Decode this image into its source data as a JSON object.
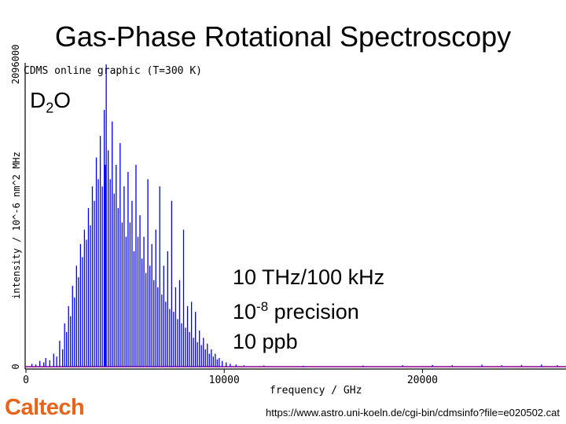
{
  "slide": {
    "title": "Gas-Phase Rotational Spectroscopy",
    "molecule_base": "D",
    "molecule_sub": "2",
    "molecule_tail": "O",
    "note_line1": "10 THz/100 kHz",
    "note_line2_base": "10",
    "note_line2_exp": "-8",
    "note_line2_tail": " precision",
    "note_line3": "10 ppb",
    "logo": "Caltech",
    "source_url": "https://www.astro.uni-koeln.de/cgi-bin/cdmsinfo?file=e020502.cat"
  },
  "chart_data": {
    "type": "bar",
    "title": "CDMS online graphic (T=300 K)",
    "xlabel": "frequency / GHz",
    "ylabel": "intensity / 10^-6 nm^2 MHz",
    "xlim": [
      0,
      27000
    ],
    "ylim": [
      0,
      2096000
    ],
    "xticks": [
      0,
      10000,
      20000
    ],
    "yticks": [
      0,
      2096000
    ],
    "grid": false,
    "colors": {
      "lines": "#0000ee",
      "baseline": "#880088",
      "axis": "#000000"
    },
    "lines": [
      [
        300,
        20000
      ],
      [
        500,
        15000
      ],
      [
        700,
        40000
      ],
      [
        900,
        30000
      ],
      [
        1000,
        60000
      ],
      [
        1200,
        45000
      ],
      [
        1400,
        90000
      ],
      [
        1550,
        70000
      ],
      [
        1700,
        180000
      ],
      [
        1850,
        120000
      ],
      [
        1950,
        300000
      ],
      [
        2050,
        240000
      ],
      [
        2150,
        420000
      ],
      [
        2250,
        350000
      ],
      [
        2350,
        560000
      ],
      [
        2450,
        480000
      ],
      [
        2550,
        700000
      ],
      [
        2650,
        620000
      ],
      [
        2750,
        850000
      ],
      [
        2850,
        760000
      ],
      [
        2950,
        950000
      ],
      [
        3050,
        880000
      ],
      [
        3150,
        1100000
      ],
      [
        3250,
        980000
      ],
      [
        3350,
        1250000
      ],
      [
        3450,
        1150000
      ],
      [
        3550,
        1450000
      ],
      [
        3650,
        1300000
      ],
      [
        3750,
        1600000
      ],
      [
        3850,
        1250000
      ],
      [
        3950,
        1780000
      ],
      [
        4000,
        1400000
      ],
      [
        4050,
        2096000
      ],
      [
        4150,
        1500000
      ],
      [
        4250,
        1300000
      ],
      [
        4350,
        1700000
      ],
      [
        4450,
        1200000
      ],
      [
        4550,
        1400000
      ],
      [
        4650,
        1100000
      ],
      [
        4750,
        1550000
      ],
      [
        4850,
        1000000
      ],
      [
        4950,
        1250000
      ],
      [
        5050,
        900000
      ],
      [
        5150,
        1350000
      ],
      [
        5250,
        1000000
      ],
      [
        5350,
        1150000
      ],
      [
        5450,
        800000
      ],
      [
        5550,
        1400000
      ],
      [
        5650,
        900000
      ],
      [
        5750,
        1050000
      ],
      [
        5850,
        750000
      ],
      [
        5950,
        900000
      ],
      [
        6050,
        650000
      ],
      [
        6150,
        1300000
      ],
      [
        6250,
        700000
      ],
      [
        6350,
        850000
      ],
      [
        6450,
        600000
      ],
      [
        6550,
        950000
      ],
      [
        6650,
        550000
      ],
      [
        6750,
        1250000
      ],
      [
        6850,
        500000
      ],
      [
        6950,
        700000
      ],
      [
        7050,
        450000
      ],
      [
        7150,
        800000
      ],
      [
        7250,
        400000
      ],
      [
        7350,
        1150000
      ],
      [
        7450,
        380000
      ],
      [
        7550,
        550000
      ],
      [
        7650,
        330000
      ],
      [
        7750,
        600000
      ],
      [
        7850,
        300000
      ],
      [
        7950,
        950000
      ],
      [
        8050,
        270000
      ],
      [
        8150,
        420000
      ],
      [
        8250,
        240000
      ],
      [
        8350,
        450000
      ],
      [
        8450,
        200000
      ],
      [
        8550,
        380000
      ],
      [
        8650,
        170000
      ],
      [
        8750,
        250000
      ],
      [
        8850,
        150000
      ],
      [
        8950,
        200000
      ],
      [
        9050,
        120000
      ],
      [
        9150,
        160000
      ],
      [
        9250,
        90000
      ],
      [
        9350,
        120000
      ],
      [
        9450,
        70000
      ],
      [
        9550,
        90000
      ],
      [
        9650,
        50000
      ],
      [
        9750,
        60000
      ],
      [
        9900,
        40000
      ],
      [
        10100,
        30000
      ],
      [
        10300,
        20000
      ],
      [
        10600,
        15000
      ],
      [
        11000,
        10000
      ],
      [
        12000,
        8000
      ],
      [
        14000,
        6000
      ],
      [
        17000,
        8000
      ],
      [
        19000,
        10000
      ],
      [
        20500,
        12000
      ],
      [
        21500,
        10000
      ],
      [
        23000,
        14000
      ],
      [
        24000,
        10000
      ],
      [
        25000,
        12000
      ],
      [
        26000,
        15000
      ],
      [
        26800,
        10000
      ]
    ]
  }
}
